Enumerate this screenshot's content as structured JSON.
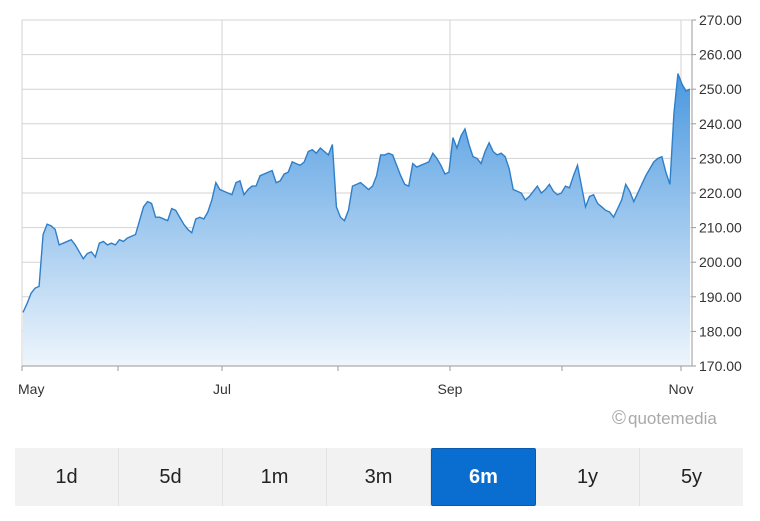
{
  "chart_data": {
    "type": "area",
    "x_tick_labels": [
      "May",
      "Jul",
      "Sep",
      "Nov"
    ],
    "y_tick_labels": [
      "170.00",
      "180.00",
      "190.00",
      "200.00",
      "210.00",
      "220.00",
      "230.00",
      "240.00",
      "250.00",
      "260.00",
      "270.00"
    ],
    "ylim": [
      170,
      270
    ],
    "y_axis_side": "right",
    "grid": true,
    "series": [
      {
        "color": "#2f7fc8",
        "fill_top": "#4a98e0",
        "fill_bottom": "#eef5fc",
        "values": [
          185.5,
          188,
          191,
          192.5,
          193,
          208,
          211,
          210.5,
          209.5,
          205,
          205.5,
          206,
          206.5,
          205,
          203,
          201,
          202.5,
          203,
          201.5,
          205.5,
          206,
          205,
          205.5,
          205,
          206.5,
          206,
          207,
          207.5,
          208,
          212,
          216,
          217.5,
          217,
          213,
          213,
          212.5,
          212,
          215.5,
          215,
          213,
          211,
          209.5,
          208.5,
          212.5,
          213,
          212.5,
          214.5,
          218,
          223,
          221,
          220.5,
          220,
          219.5,
          223,
          223.5,
          219.5,
          221,
          222,
          222,
          225,
          225.5,
          226,
          226.5,
          223,
          223.5,
          225.5,
          226,
          229,
          228.5,
          228,
          229,
          232,
          232.5,
          231.5,
          233,
          232,
          231,
          234,
          216,
          213,
          212,
          215,
          222,
          222.5,
          223,
          222,
          221,
          222,
          225,
          231,
          231,
          231.5,
          231,
          228,
          225,
          222.5,
          222,
          228.5,
          227.5,
          228,
          228.5,
          229,
          231.5,
          230,
          228,
          225.5,
          226,
          236,
          233,
          236.5,
          238.5,
          234,
          230.5,
          230,
          228.5,
          232,
          234.5,
          232,
          231,
          231.5,
          230.5,
          227,
          221,
          220.5,
          220,
          218,
          219,
          220.5,
          222,
          220,
          221,
          222.5,
          220.5,
          219.5,
          220,
          222,
          221.5,
          225,
          228,
          222,
          216,
          219,
          219.5,
          217,
          216,
          215,
          214.5,
          213,
          215.5,
          218,
          222.5,
          220.5,
          217.5,
          220,
          222.5,
          225,
          227,
          229,
          230,
          230.5,
          226,
          222.5,
          243,
          254.5,
          251.5,
          249.5,
          250
        ]
      }
    ]
  },
  "ranges": [
    "1d",
    "5d",
    "1m",
    "3m",
    "6m",
    "1y",
    "5y"
  ],
  "active_range": "6m",
  "watermark": {
    "symbol": "©",
    "text": "quotemedia"
  }
}
